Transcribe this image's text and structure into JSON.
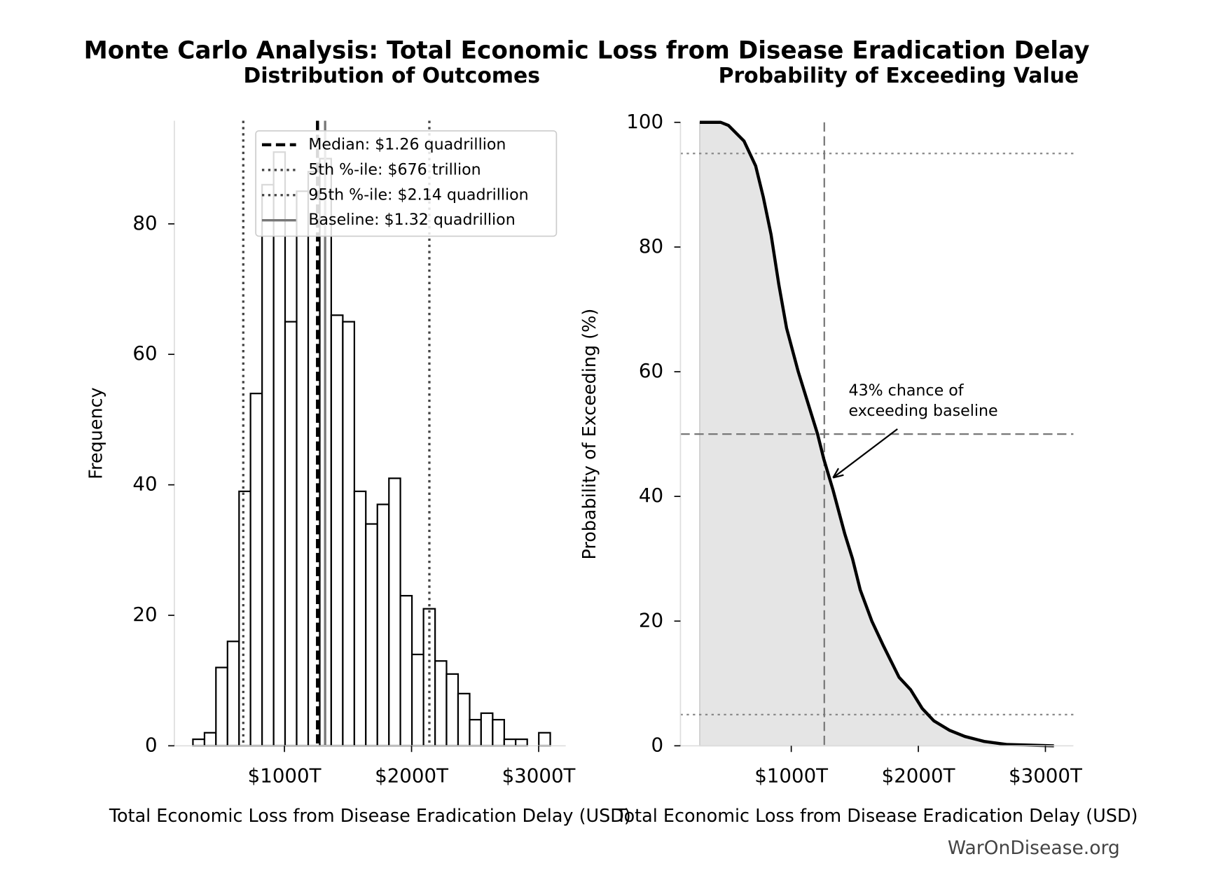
{
  "title": "Monte Carlo Analysis: Total Economic Loss from Disease Eradication Delay",
  "watermark": "WarOnDisease.org",
  "chart_data": [
    {
      "type": "histogram",
      "title": "Distribution of Outcomes",
      "x_label": "Total Economic Loss from Disease Eradication Delay (USD)",
      "y_label": "Frequency",
      "bins": [
        280,
        371,
        461,
        552,
        643,
        733,
        824,
        915,
        1005,
        1096,
        1187,
        1278,
        1368,
        1459,
        1550,
        1640,
        1731,
        1822,
        1912,
        2003,
        2094,
        2185,
        2275,
        2366,
        2457,
        2547,
        2638,
        2729,
        2819,
        2910,
        3001,
        3091
      ],
      "values": [
        1,
        2,
        12,
        16,
        39,
        54,
        86,
        91,
        65,
        85,
        88,
        90,
        66,
        65,
        39,
        34,
        37,
        41,
        23,
        14,
        21,
        13,
        11,
        8,
        4,
        5,
        4,
        1,
        1,
        0,
        2
      ],
      "color": "#ffffff",
      "edgecolor": "#000000",
      "xlim": [
        134,
        3213
      ],
      "ylim": [
        0,
        95.8
      ],
      "xticks": [
        {
          "value": 1000,
          "label": "$1000T"
        },
        {
          "value": 2000,
          "label": "$2000T"
        },
        {
          "value": 3000,
          "label": "$3000T"
        }
      ],
      "yticks": [
        0,
        20,
        40,
        60,
        80
      ],
      "reference_lines": [
        {
          "name": "Median: $1.26 quadrillion",
          "value": 1260,
          "color": "#000000",
          "style": "dashed"
        },
        {
          "name": "5th %-ile: $676 trillion",
          "value": 676,
          "color": "#444444",
          "style": "dotted"
        },
        {
          "name": "95th %-ile: $2.14 quadrillion",
          "value": 2140,
          "color": "#444444",
          "style": "dotted"
        },
        {
          "name": "Baseline: $1.32 quadrillion",
          "value": 1320,
          "color": "#777777",
          "style": "solid"
        }
      ],
      "legend": "upper right"
    },
    {
      "type": "line",
      "title": "Probability of Exceeding Value",
      "x_label": "Total Economic Loss from Disease Eradication Delay (USD)",
      "y_label": "Probability of Exceeding (%)",
      "x": [
        280,
        445,
        506,
        628,
        720,
        780,
        841,
        902,
        963,
        1055,
        1146,
        1207,
        1256,
        1329,
        1421,
        1482,
        1543,
        1634,
        1726,
        1848,
        1939,
        2030,
        2122,
        2244,
        2366,
        2518,
        2701,
        3067
      ],
      "values": [
        100,
        100,
        99.5,
        97,
        93,
        88,
        82,
        74,
        67,
        60,
        54,
        50,
        46,
        41,
        34,
        30,
        25,
        20,
        16,
        11,
        9,
        6,
        4,
        2.5,
        1.5,
        0.7,
        0.2,
        0
      ],
      "color": "#000000",
      "fill": "#e5e5e5",
      "xlim": [
        128,
        3220
      ],
      "ylim": [
        0,
        100
      ],
      "xticks": [
        {
          "value": 1000,
          "label": "$1000T"
        },
        {
          "value": 2000,
          "label": "$2000T"
        },
        {
          "value": 3000,
          "label": "$3000T"
        }
      ],
      "yticks": [
        0,
        20,
        40,
        60,
        80,
        100
      ],
      "hlines": [
        {
          "value": 95,
          "color": "#888888",
          "style": "dotted"
        },
        {
          "value": 50,
          "color": "#777777",
          "style": "dashed"
        },
        {
          "value": 5,
          "color": "#888888",
          "style": "dotted"
        }
      ],
      "vlines": [
        {
          "value": 1260,
          "color": "#777777",
          "style": "dashed"
        }
      ],
      "annotation": {
        "text": [
          "43% chance of",
          "exceeding baseline"
        ],
        "xy": [
          1329,
          43
        ]
      }
    }
  ]
}
